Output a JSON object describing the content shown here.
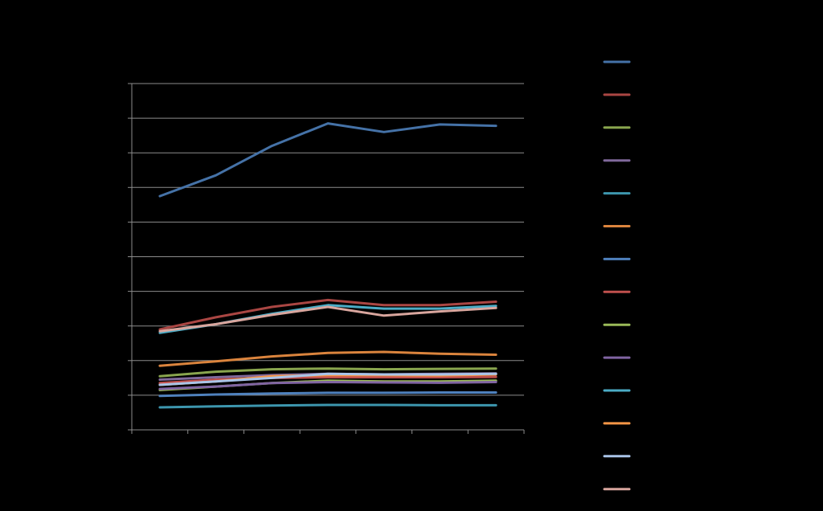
{
  "chart_data": {
    "type": "line",
    "title": "",
    "xlabel": "",
    "ylabel": "",
    "ylim": [
      0,
      10
    ],
    "grid": true,
    "legend_placement": "right",
    "x": [
      1,
      2,
      3,
      4,
      5,
      6,
      7
    ],
    "series": [
      {
        "color": "#4572A7",
        "values": [
          6.75,
          7.35,
          8.2,
          8.85,
          8.6,
          8.82,
          8.78
        ]
      },
      {
        "color": "#AA4643",
        "values": [
          2.9,
          3.25,
          3.55,
          3.75,
          3.6,
          3.6,
          3.7
        ]
      },
      {
        "color": "#89A54E",
        "values": [
          1.55,
          1.68,
          1.75,
          1.77,
          1.75,
          1.76,
          1.77
        ]
      },
      {
        "color": "#80699B",
        "values": [
          1.45,
          1.52,
          1.58,
          1.62,
          1.6,
          1.62,
          1.63
        ]
      },
      {
        "color": "#3D96AE",
        "values": [
          0.65,
          0.68,
          0.7,
          0.72,
          0.72,
          0.71,
          0.71
        ]
      },
      {
        "color": "#DB843D",
        "values": [
          1.85,
          1.98,
          2.12,
          2.22,
          2.25,
          2.2,
          2.17
        ]
      },
      {
        "color": "#4F81BD",
        "values": [
          0.98,
          1.02,
          1.05,
          1.07,
          1.07,
          1.08,
          1.08
        ]
      },
      {
        "color": "#C0504D",
        "values": [
          1.35,
          1.45,
          1.5,
          1.52,
          1.52,
          1.52,
          1.53
        ]
      },
      {
        "color": "#9BBB59",
        "values": [
          1.15,
          1.25,
          1.35,
          1.42,
          1.4,
          1.4,
          1.42
        ]
      },
      {
        "color": "#8064A2",
        "values": [
          1.18,
          1.25,
          1.35,
          1.38,
          1.37,
          1.36,
          1.38
        ]
      },
      {
        "color": "#4BACC6",
        "values": [
          2.8,
          3.05,
          3.35,
          3.6,
          3.5,
          3.5,
          3.58
        ]
      },
      {
        "color": "#F79646",
        "values": [
          1.3,
          1.4,
          1.55,
          1.58,
          1.58,
          1.57,
          1.6
        ]
      },
      {
        "color": "#A9C4E8",
        "values": [
          1.3,
          1.4,
          1.5,
          1.62,
          1.6,
          1.6,
          1.62
        ]
      },
      {
        "color": "#D9A69E",
        "values": [
          2.85,
          3.05,
          3.32,
          3.55,
          3.3,
          3.42,
          3.52
        ]
      }
    ]
  }
}
